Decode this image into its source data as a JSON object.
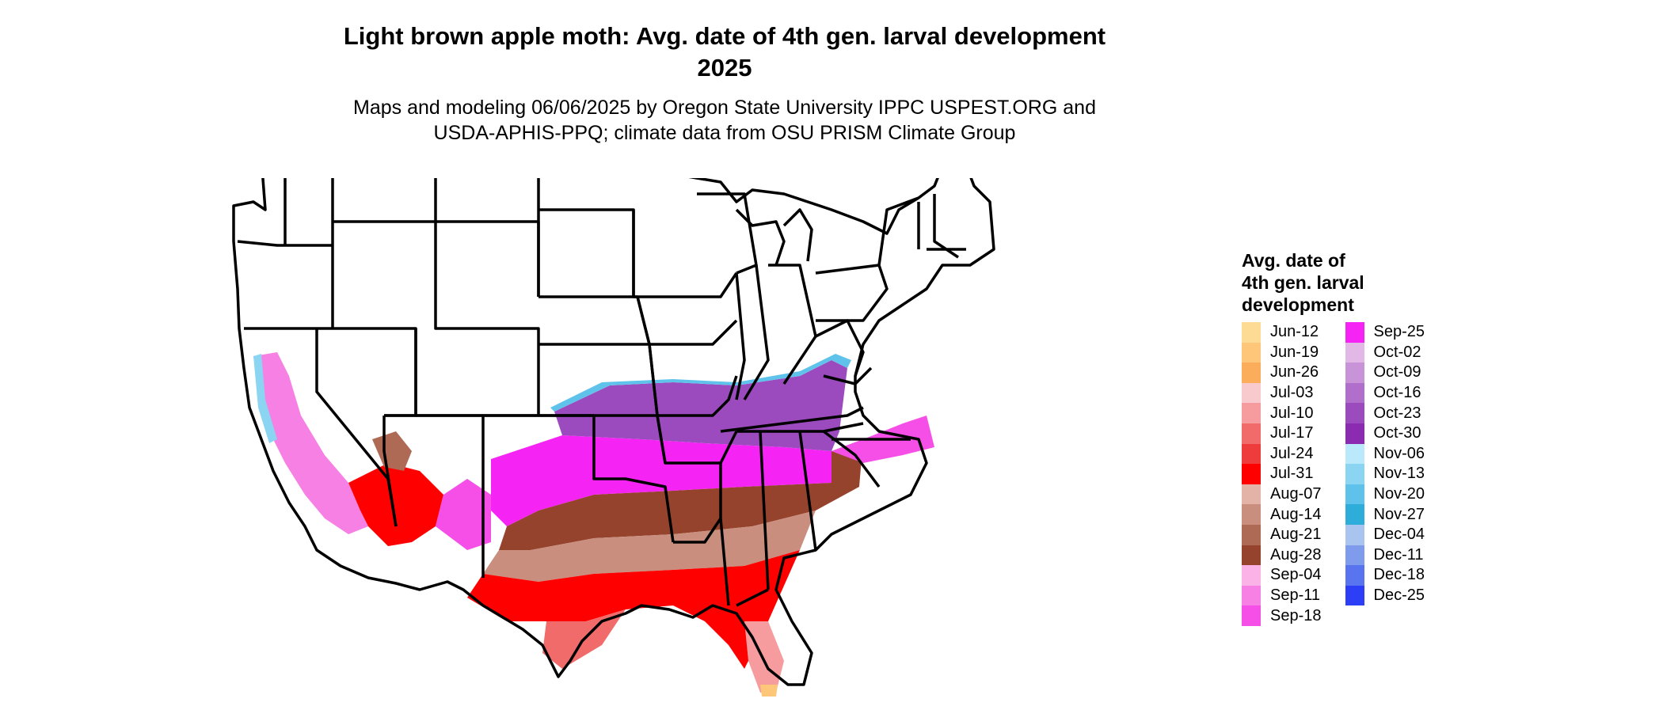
{
  "title": {
    "line1": "Light brown apple moth: Avg. date of 4th gen. larval development",
    "line2": "2025"
  },
  "subtitle": {
    "line1": "Maps and modeling 06/06/2025 by Oregon State University IPPC USPEST.ORG and",
    "line2": "USDA-APHIS-PPQ; climate data from OSU PRISM Climate Group"
  },
  "legend": {
    "title_lines": [
      "Avg. date of",
      "4th gen. larval",
      "development"
    ],
    "column1": [
      {
        "label": "Jun-12",
        "color": "#FDDB94"
      },
      {
        "label": "Jun-19",
        "color": "#FDC678"
      },
      {
        "label": "Jun-26",
        "color": "#FCAD5B"
      },
      {
        "label": "Jul-03",
        "color": "#F8CACD"
      },
      {
        "label": "Jul-10",
        "color": "#F69C9E"
      },
      {
        "label": "Jul-17",
        "color": "#F26B6B"
      },
      {
        "label": "Jul-24",
        "color": "#EE3B3B"
      },
      {
        "label": "Jul-31",
        "color": "#FF0000"
      },
      {
        "label": "Aug-07",
        "color": "#E3B3A7"
      },
      {
        "label": "Aug-14",
        "color": "#C98E7E"
      },
      {
        "label": "Aug-21",
        "color": "#AF6A55"
      },
      {
        "label": "Aug-28",
        "color": "#96432E"
      },
      {
        "label": "Sep-04",
        "color": "#FAB2E7"
      },
      {
        "label": "Sep-11",
        "color": "#F780E4"
      },
      {
        "label": "Sep-18",
        "color": "#F64FE8"
      }
    ],
    "column2": [
      {
        "label": "Sep-25",
        "color": "#F524F5"
      },
      {
        "label": "Oct-02",
        "color": "#E2B8E6"
      },
      {
        "label": "Oct-09",
        "color": "#C993D8"
      },
      {
        "label": "Oct-16",
        "color": "#B06FCA"
      },
      {
        "label": "Oct-23",
        "color": "#9C4BBE"
      },
      {
        "label": "Oct-30",
        "color": "#8B2BB1"
      },
      {
        "label": "Nov-06",
        "color": "#B9E9FA"
      },
      {
        "label": "Nov-13",
        "color": "#8CD5F2"
      },
      {
        "label": "Nov-20",
        "color": "#5EC2EA"
      },
      {
        "label": "Nov-27",
        "color": "#2EADDB"
      },
      {
        "label": "Dec-04",
        "color": "#A8C4EF"
      },
      {
        "label": "Dec-11",
        "color": "#7F9CEC"
      },
      {
        "label": "Dec-18",
        "color": "#5874EE"
      },
      {
        "label": "Dec-25",
        "color": "#2D3FF6"
      }
    ]
  },
  "map": {
    "state_fill_unaffected": "#FFFFFF",
    "border_color": "#000000"
  }
}
